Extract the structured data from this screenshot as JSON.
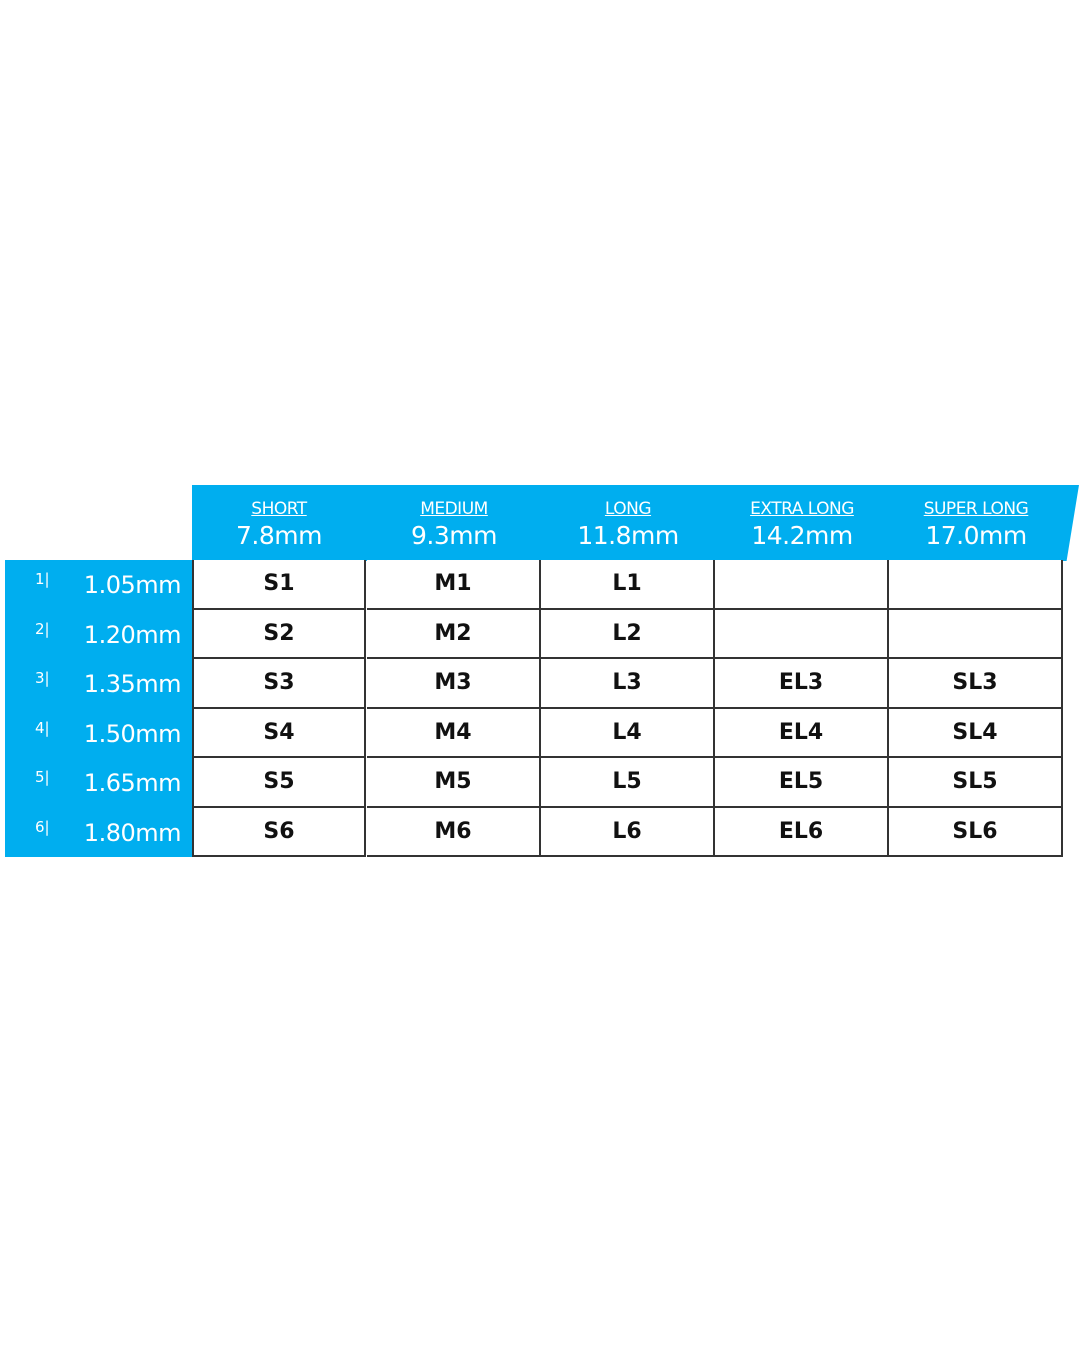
{
  "accent_color": "#00aeef",
  "columns": [
    {
      "name": "SHORT",
      "length": "7.8mm"
    },
    {
      "name": "MEDIUM",
      "length": "9.3mm"
    },
    {
      "name": "LONG",
      "length": "11.8mm"
    },
    {
      "name": "EXTRA LONG",
      "length": "14.2mm"
    },
    {
      "name": "SUPER LONG",
      "length": "17.0mm"
    }
  ],
  "rows": [
    {
      "num": "1|",
      "thickness": "1.05mm",
      "cells": [
        "S1",
        "M1",
        "L1",
        "",
        ""
      ]
    },
    {
      "num": "2|",
      "thickness": "1.20mm",
      "cells": [
        "S2",
        "M2",
        "L2",
        "",
        ""
      ]
    },
    {
      "num": "3|",
      "thickness": "1.35mm",
      "cells": [
        "S3",
        "M3",
        "L3",
        "EL3",
        "SL3"
      ]
    },
    {
      "num": "4|",
      "thickness": "1.50mm",
      "cells": [
        "S4",
        "M4",
        "L4",
        "EL4",
        "SL4"
      ]
    },
    {
      "num": "5|",
      "thickness": "1.65mm",
      "cells": [
        "S5",
        "M5",
        "L5",
        "EL5",
        "SL5"
      ]
    },
    {
      "num": "6|",
      "thickness": "1.80mm",
      "cells": [
        "S6",
        "M6",
        "L6",
        "EL6",
        "SL6"
      ]
    }
  ]
}
